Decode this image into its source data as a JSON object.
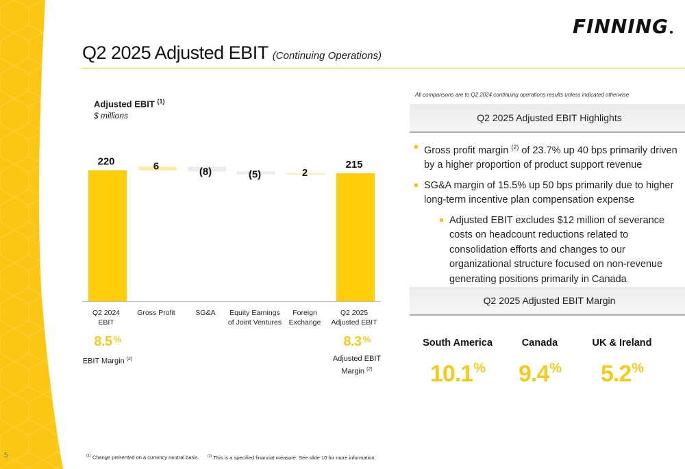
{
  "page_number": "5",
  "logo_text": "FINNING",
  "header": {
    "title": "Q2 2025 Adjusted EBIT",
    "subtitle": "(Continuing Operations)"
  },
  "chart_data": {
    "type": "bar",
    "variant": "waterfall",
    "title": "Adjusted EBIT",
    "title_note": "(1)",
    "ylabel": "$ millions",
    "categories": [
      "Q2 2024\nEBIT",
      "Gross Profit",
      "SG&A",
      "Equity Earnings\nof Joint Ventures",
      "Foreign\nExchange",
      "Q2 2025\nAdjusted EBIT"
    ],
    "values": [
      220,
      6,
      -8,
      -5,
      2,
      215
    ],
    "data_labels": [
      "220",
      "6",
      "(8)",
      "(5)",
      "2",
      "215"
    ],
    "bar_kinds": [
      "total",
      "increase",
      "decrease",
      "decrease",
      "increase",
      "total"
    ],
    "ylim": [
      0,
      240
    ],
    "colors": {
      "total": "#fecd0c",
      "increase": "#fdeaa3",
      "decrease": "#ececec"
    }
  },
  "ebit_margins": {
    "start": {
      "value": "8.5",
      "symbol": "%",
      "label": "EBIT Margin",
      "note": "(2)"
    },
    "end": {
      "value": "8.3",
      "symbol": "%",
      "label_line1": "Adjusted EBIT",
      "label_line2": "Margin",
      "note": "(2)"
    }
  },
  "compare_note": "All comparisons are to Q2 2024 continuing operations results unless indicated otherwise",
  "highlights": {
    "title": "Q2 2025 Adjusted EBIT Highlights",
    "bullets": [
      {
        "pre": "Gross profit margin ",
        "sup": "(2)",
        "post": " of 23.7% up 40 bps primarily driven by a higher proportion of product support revenue"
      },
      {
        "text": "SG&A margin of 15.5% up 50 bps primarily due to higher long-term incentive plan compensation expense"
      },
      {
        "text": "Adjusted EBIT excludes $12 million of severance costs on headcount reductions related to consolidation efforts and changes to our organizational structure focused on non-revenue generating positions primarily in Canada"
      }
    ]
  },
  "margin_section": {
    "title": "Q2 2025 Adjusted EBIT Margin",
    "regions": [
      {
        "name": "South America",
        "value": "10.1",
        "symbol": "%"
      },
      {
        "name": "Canada",
        "value": "9.4",
        "symbol": "%"
      },
      {
        "name": "UK & Ireland",
        "value": "5.2",
        "symbol": "%"
      }
    ]
  },
  "footnotes": {
    "fn1_mark": "(1)",
    "fn1": " Change presented on a currency neutral basis.",
    "fn2_mark": "(2)",
    "fn2": " This is a specified financial measure. See slide 10 for more information."
  },
  "colors": {
    "accent": "#fecd0c",
    "accent_text": "#f2cb1d"
  }
}
